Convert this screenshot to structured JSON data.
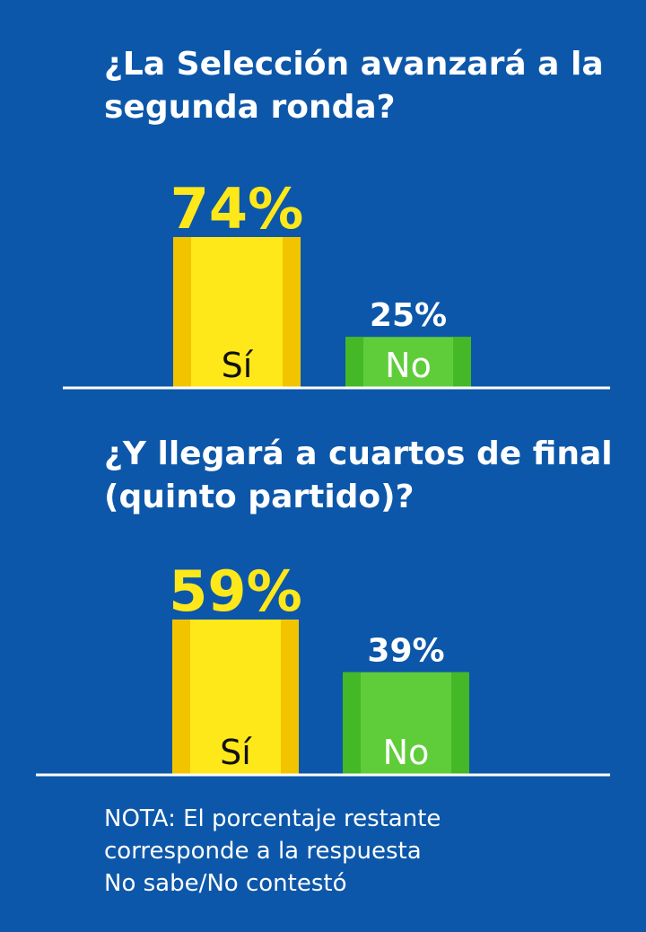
{
  "colors": {
    "background": "#0c57a9",
    "si_bar": "#ffe81a",
    "si_value": "#ffe81a",
    "no_bar": "#5fcd3a",
    "no_value": "#ffffff",
    "axis": "#ffffff"
  },
  "note": {
    "lines": [
      "NOTA: El porcentaje restante",
      "corresponde a la respuesta",
      "No sabe/No contestó"
    ]
  },
  "chart_data": [
    {
      "type": "bar",
      "title": "¿La Selección avanzará a la segunda ronda?",
      "categories": [
        "Sí",
        "No"
      ],
      "values": [
        74,
        25
      ],
      "value_labels": [
        "74%",
        "25%"
      ],
      "ylim": [
        0,
        74
      ],
      "grid": false,
      "legend": "none"
    },
    {
      "type": "bar",
      "title": "¿Y llegará a cuartos de final (quinto partido)?",
      "categories": [
        "Sí",
        "No"
      ],
      "values": [
        59,
        39
      ],
      "value_labels": [
        "59%",
        "39%"
      ],
      "ylim": [
        0,
        59
      ],
      "grid": false,
      "legend": "none"
    }
  ]
}
